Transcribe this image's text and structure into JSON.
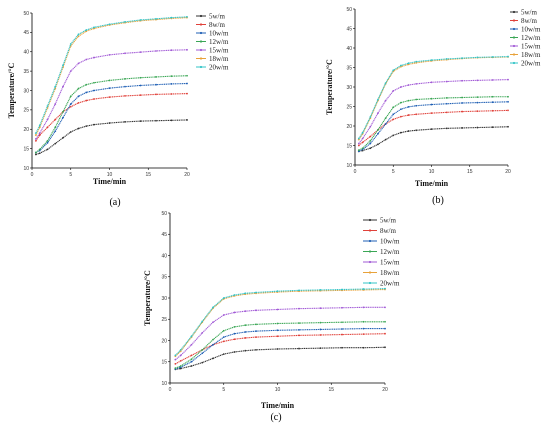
{
  "chart_data": [
    {
      "type": "line",
      "caption": "(a)",
      "xlabel": "Time/min",
      "ylabel": "Temperature/°C",
      "xlim": [
        0,
        20
      ],
      "ylim": [
        10,
        50
      ],
      "xticks": [
        "0",
        "5",
        "10",
        "15",
        "20"
      ],
      "yticks": [
        "10",
        "15",
        "20",
        "25",
        "30",
        "35",
        "40",
        "45",
        "50"
      ],
      "legend": "top-right",
      "series": [
        {
          "name": "5w/m",
          "color": "#333333",
          "x": [
            0.5,
            1,
            2,
            3,
            4,
            5,
            6,
            7,
            8,
            10,
            12,
            14,
            16,
            18,
            20
          ],
          "values": [
            13.5,
            13.8,
            14.8,
            16.3,
            17.8,
            19.3,
            20.2,
            20.8,
            21.2,
            21.6,
            21.9,
            22.1,
            22.2,
            22.3,
            22.4
          ]
        },
        {
          "name": "8w/m",
          "color": "#e0413a",
          "x": [
            0.5,
            1,
            2,
            3,
            4,
            5,
            6,
            7,
            8,
            10,
            12,
            14,
            16,
            18,
            20
          ],
          "values": [
            17.0,
            18.5,
            20.5,
            22.5,
            24.5,
            25.8,
            26.8,
            27.4,
            27.8,
            28.3,
            28.6,
            28.8,
            29.0,
            29.1,
            29.2
          ]
        },
        {
          "name": "10w/m",
          "color": "#1f5fb4",
          "x": [
            0.5,
            1,
            2,
            3,
            4,
            5,
            6,
            7,
            8,
            10,
            12,
            14,
            16,
            18,
            20
          ],
          "values": [
            14.0,
            14.5,
            16.5,
            19.5,
            23.0,
            26.5,
            28.5,
            29.5,
            30.0,
            30.6,
            31.0,
            31.3,
            31.5,
            31.7,
            31.8
          ]
        },
        {
          "name": "12w/m",
          "color": "#3aa655",
          "x": [
            0.5,
            1,
            2,
            3,
            4,
            5,
            6,
            7,
            8,
            10,
            12,
            14,
            16,
            18,
            20
          ],
          "values": [
            14.0,
            14.8,
            17.0,
            20.5,
            24.5,
            28.5,
            30.5,
            31.5,
            32.0,
            32.6,
            33.0,
            33.3,
            33.5,
            33.7,
            33.8
          ]
        },
        {
          "name": "15w/m",
          "color": "#a25bd6",
          "x": [
            0.5,
            1,
            2,
            3,
            4,
            5,
            6,
            7,
            8,
            10,
            12,
            14,
            16,
            18,
            20
          ],
          "values": [
            17.5,
            19.0,
            22.5,
            26.5,
            31.0,
            35.0,
            37.0,
            38.0,
            38.5,
            39.2,
            39.6,
            39.9,
            40.2,
            40.4,
            40.5
          ]
        },
        {
          "name": "18w/m",
          "color": "#e8a23a",
          "x": [
            0.5,
            1,
            2,
            3,
            4,
            5,
            6,
            7,
            8,
            10,
            12,
            14,
            16,
            18,
            20
          ],
          "values": [
            18.5,
            20.5,
            25.5,
            30.5,
            36.0,
            41.5,
            44.0,
            45.3,
            46.0,
            46.9,
            47.5,
            48.0,
            48.3,
            48.6,
            48.8
          ]
        },
        {
          "name": "20w/m",
          "color": "#33c4c7",
          "x": [
            0.5,
            1,
            2,
            3,
            4,
            5,
            6,
            7,
            8,
            10,
            12,
            14,
            16,
            18,
            20
          ],
          "values": [
            19.0,
            21.0,
            26.0,
            31.0,
            36.5,
            42.0,
            44.5,
            45.6,
            46.3,
            47.1,
            47.7,
            48.2,
            48.5,
            48.8,
            49.0
          ]
        }
      ]
    },
    {
      "type": "line",
      "caption": "(b)",
      "xlabel": "Time/min",
      "ylabel": "Temperature/°C",
      "xlim": [
        0,
        20
      ],
      "ylim": [
        10,
        50
      ],
      "xticks": [
        "0",
        "5",
        "10",
        "15",
        "20"
      ],
      "yticks": [
        "10",
        "15",
        "20",
        "25",
        "30",
        "35",
        "40",
        "45",
        "50"
      ],
      "legend": "top-right",
      "series": [
        {
          "name": "5w/m",
          "color": "#333333",
          "x": [
            0.5,
            1,
            2,
            3,
            4,
            5,
            6,
            7,
            8,
            10,
            12,
            14,
            16,
            18,
            20
          ],
          "values": [
            13.5,
            13.7,
            14.3,
            15.3,
            16.5,
            17.6,
            18.3,
            18.7,
            18.9,
            19.2,
            19.4,
            19.5,
            19.6,
            19.7,
            19.8
          ]
        },
        {
          "name": "8w/m",
          "color": "#e0413a",
          "x": [
            0.5,
            1,
            2,
            3,
            4,
            5,
            6,
            7,
            8,
            10,
            12,
            14,
            16,
            18,
            20
          ],
          "values": [
            15.0,
            15.8,
            17.3,
            19.0,
            20.5,
            21.7,
            22.4,
            22.8,
            23.0,
            23.3,
            23.5,
            23.7,
            23.8,
            23.9,
            24.0
          ]
        },
        {
          "name": "10w/m",
          "color": "#1f5fb4",
          "x": [
            0.5,
            1,
            2,
            3,
            4,
            5,
            6,
            7,
            8,
            10,
            12,
            14,
            16,
            18,
            20
          ],
          "values": [
            13.5,
            14.0,
            15.5,
            18.0,
            20.5,
            23.0,
            24.3,
            24.9,
            25.2,
            25.5,
            25.7,
            25.9,
            26.0,
            26.1,
            26.2
          ]
        },
        {
          "name": "12w/m",
          "color": "#3aa655",
          "x": [
            0.5,
            1,
            2,
            3,
            4,
            5,
            6,
            7,
            8,
            10,
            12,
            14,
            16,
            18,
            20
          ],
          "values": [
            13.8,
            14.3,
            16.2,
            19.0,
            22.0,
            24.8,
            26.0,
            26.5,
            26.8,
            27.0,
            27.2,
            27.3,
            27.4,
            27.5,
            27.5
          ]
        },
        {
          "name": "15w/m",
          "color": "#a25bd6",
          "x": [
            0.5,
            1,
            2,
            3,
            4,
            5,
            6,
            7,
            8,
            10,
            12,
            14,
            16,
            18,
            20
          ],
          "values": [
            15.5,
            16.8,
            19.8,
            23.3,
            26.5,
            29.0,
            30.0,
            30.5,
            30.8,
            31.2,
            31.4,
            31.6,
            31.7,
            31.8,
            31.9
          ]
        },
        {
          "name": "18w/m",
          "color": "#e8a23a",
          "x": [
            0.5,
            1,
            2,
            3,
            4,
            5,
            6,
            7,
            8,
            10,
            12,
            14,
            16,
            18,
            20
          ],
          "values": [
            16.5,
            18.0,
            22.0,
            26.5,
            30.8,
            34.0,
            35.2,
            35.8,
            36.2,
            36.7,
            37.0,
            37.3,
            37.5,
            37.6,
            37.7
          ]
        },
        {
          "name": "20w/m",
          "color": "#33c4c7",
          "x": [
            0.5,
            1,
            2,
            3,
            4,
            5,
            6,
            7,
            8,
            10,
            12,
            14,
            16,
            18,
            20
          ],
          "values": [
            16.8,
            18.3,
            22.3,
            26.8,
            31.0,
            34.3,
            35.5,
            36.1,
            36.5,
            36.9,
            37.2,
            37.4,
            37.6,
            37.7,
            37.8
          ]
        }
      ]
    },
    {
      "type": "line",
      "caption": "(c)",
      "xlabel": "Time/min",
      "ylabel": "Temperature/°C",
      "xlim": [
        0,
        20
      ],
      "ylim": [
        10,
        50
      ],
      "xticks": [
        "0",
        "5",
        "10",
        "15",
        "20"
      ],
      "yticks": [
        "10",
        "15",
        "20",
        "25",
        "30",
        "35",
        "40",
        "45",
        "50"
      ],
      "legend": "top-right",
      "series": [
        {
          "name": "5w/m",
          "color": "#333333",
          "x": [
            0.5,
            1,
            2,
            3,
            4,
            5,
            6,
            7,
            8,
            10,
            12,
            14,
            16,
            18,
            20
          ],
          "values": [
            13.2,
            13.4,
            14.0,
            14.8,
            15.8,
            16.8,
            17.3,
            17.6,
            17.8,
            18.0,
            18.1,
            18.2,
            18.3,
            18.3,
            18.4
          ]
        },
        {
          "name": "8w/m",
          "color": "#e0413a",
          "x": [
            0.5,
            1,
            2,
            3,
            4,
            5,
            6,
            7,
            8,
            10,
            12,
            14,
            16,
            18,
            20
          ],
          "values": [
            14.5,
            15.2,
            16.5,
            17.8,
            19.0,
            19.8,
            20.3,
            20.6,
            20.8,
            21.0,
            21.2,
            21.3,
            21.4,
            21.5,
            21.6
          ]
        },
        {
          "name": "10w/m",
          "color": "#1f5fb4",
          "x": [
            0.5,
            1,
            2,
            3,
            4,
            5,
            6,
            7,
            8,
            10,
            12,
            14,
            16,
            18,
            20
          ],
          "values": [
            13.3,
            13.7,
            15.0,
            17.0,
            19.0,
            20.8,
            21.6,
            22.0,
            22.2,
            22.4,
            22.5,
            22.6,
            22.7,
            22.8,
            22.8
          ]
        },
        {
          "name": "12w/m",
          "color": "#3aa655",
          "x": [
            0.5,
            1,
            2,
            3,
            4,
            5,
            6,
            7,
            8,
            10,
            12,
            14,
            16,
            18,
            20
          ],
          "values": [
            13.5,
            14.0,
            15.6,
            17.8,
            20.2,
            22.3,
            23.2,
            23.6,
            23.8,
            24.0,
            24.1,
            24.2,
            24.3,
            24.4,
            24.4
          ]
        },
        {
          "name": "15w/m",
          "color": "#a25bd6",
          "x": [
            0.5,
            1,
            2,
            3,
            4,
            5,
            6,
            7,
            8,
            10,
            12,
            14,
            16,
            18,
            20
          ],
          "values": [
            15.5,
            16.5,
            19.0,
            21.8,
            24.3,
            26.0,
            26.6,
            26.9,
            27.1,
            27.3,
            27.5,
            27.6,
            27.7,
            27.8,
            27.8
          ]
        },
        {
          "name": "18w/m",
          "color": "#e8a23a",
          "x": [
            0.5,
            1,
            2,
            3,
            4,
            5,
            6,
            7,
            8,
            10,
            12,
            14,
            16,
            18,
            20
          ],
          "values": [
            16.3,
            17.5,
            20.8,
            24.3,
            27.6,
            29.8,
            30.5,
            30.9,
            31.1,
            31.4,
            31.6,
            31.7,
            31.8,
            31.9,
            32.0
          ]
        },
        {
          "name": "20w/m",
          "color": "#33c4c7",
          "x": [
            0.5,
            1,
            2,
            3,
            4,
            5,
            6,
            7,
            8,
            10,
            12,
            14,
            16,
            18,
            20
          ],
          "values": [
            16.5,
            17.8,
            21.0,
            24.5,
            27.8,
            30.0,
            30.7,
            31.1,
            31.3,
            31.6,
            31.8,
            31.9,
            32.0,
            32.1,
            32.2
          ]
        }
      ]
    }
  ]
}
